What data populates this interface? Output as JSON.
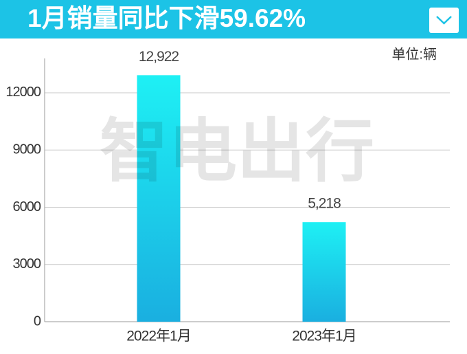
{
  "chart_data": {
    "type": "bar",
    "title": "1月销量同比下滑59.62%",
    "unit_label": "单位:辆",
    "watermark": "智电出行",
    "categories": [
      "2022年1月",
      "2023年1月"
    ],
    "values": [
      12922,
      5218
    ],
    "value_labels": [
      "12,922",
      "5,218"
    ],
    "color": "#18d8ee",
    "ylim": [
      0,
      13800
    ],
    "yticks": [
      0,
      3000,
      6000,
      9000,
      12000
    ],
    "grid": true
  }
}
